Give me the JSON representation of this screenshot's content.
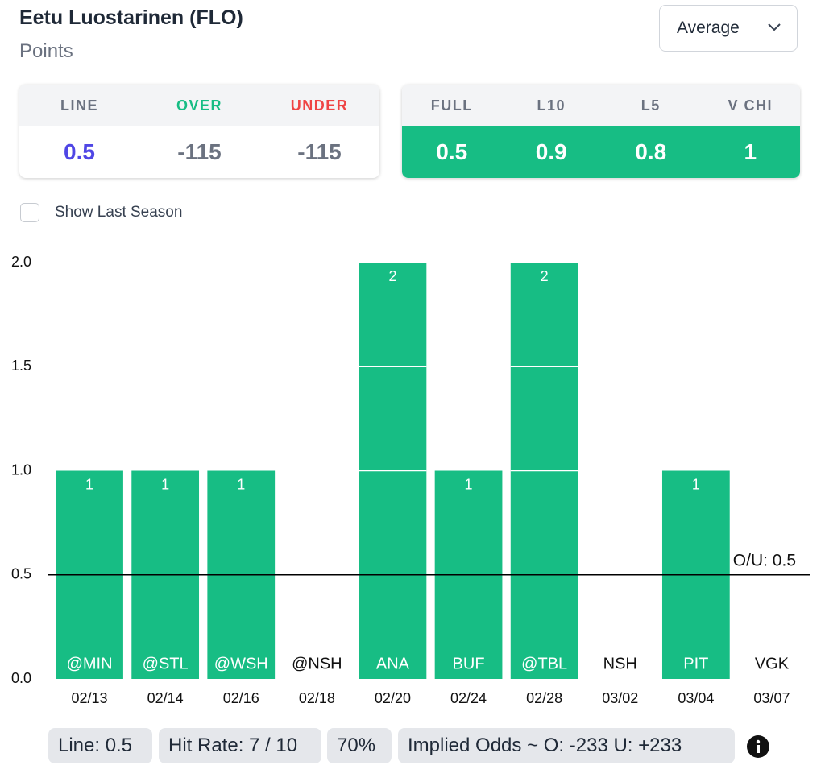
{
  "header": {
    "title": "Eetu Luostarinen (FLO)",
    "subtitle": "Points",
    "dropdown": "Average"
  },
  "line_table": {
    "headers": [
      "LINE",
      "OVER",
      "UNDER"
    ],
    "values": [
      "0.5",
      "-115",
      "-115"
    ]
  },
  "average_table": {
    "headers": [
      "FULL",
      "L10",
      "L5",
      "V CHI"
    ],
    "values": [
      "0.5",
      "0.9",
      "0.8",
      "1"
    ]
  },
  "checkbox": {
    "label": "Show Last Season"
  },
  "chart_data": {
    "type": "bar",
    "categories": [
      "@MIN",
      "@STL",
      "@WSH",
      "@NSH",
      "ANA",
      "BUF",
      "@TBL",
      "NSH",
      "PIT",
      "VGK"
    ],
    "dates": [
      "02/13",
      "02/14",
      "02/16",
      "02/18",
      "02/20",
      "02/24",
      "02/28",
      "03/02",
      "03/04",
      "03/07"
    ],
    "values": [
      1,
      1,
      1,
      0,
      2,
      1,
      2,
      0,
      1,
      0
    ],
    "color": "#17bd84",
    "ylim": [
      0,
      2
    ],
    "yticks": [
      {
        "value": 0,
        "label": "0.0"
      },
      {
        "value": 0.5,
        "label": "0.5"
      },
      {
        "value": 1,
        "label": "1.0"
      },
      {
        "value": 1.5,
        "label": "1.5"
      },
      {
        "value": 2,
        "label": "2.0"
      }
    ],
    "reference_line": {
      "value": 0.5,
      "label": "O/U: 0.5"
    }
  },
  "footer": {
    "pills": [
      "Line: 0.5",
      "Hit Rate: 7 / 10",
      "70%",
      "Implied Odds ~ O: -233 U: +233"
    ]
  }
}
